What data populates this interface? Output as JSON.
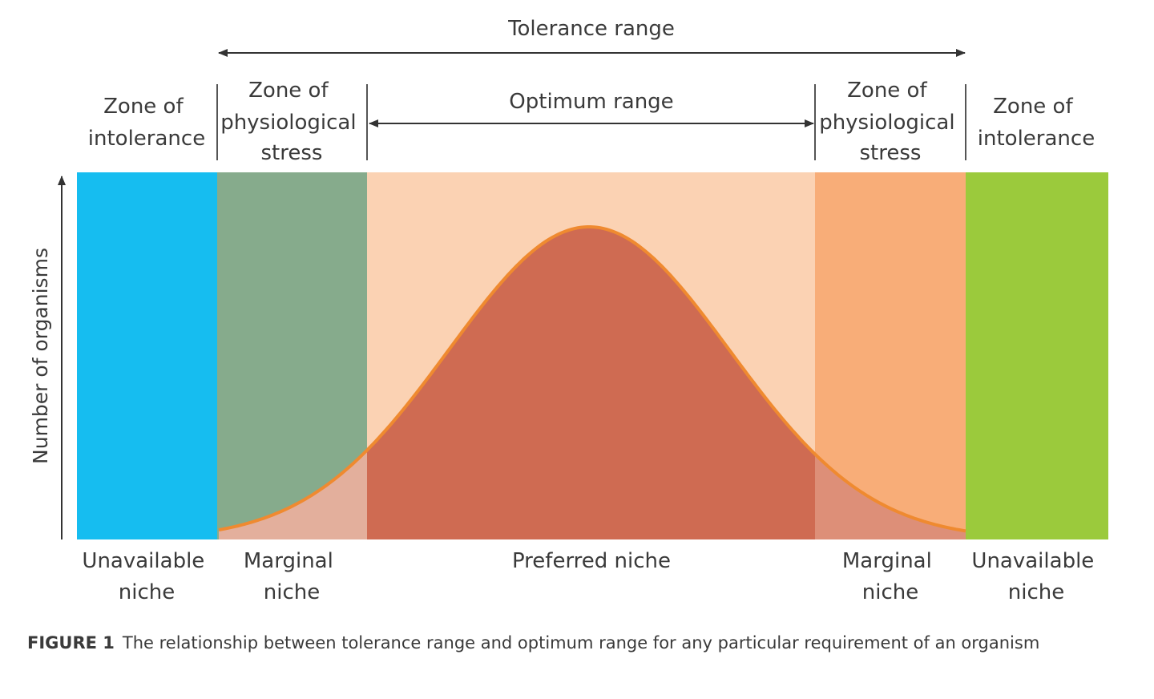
{
  "top": {
    "tolerance_range": "Tolerance range",
    "optimum_range": "Optimum range"
  },
  "zones": [
    {
      "lines": [
        "Zone of",
        "intolerance"
      ]
    },
    {
      "lines": [
        "Zone of",
        "physiological",
        "stress"
      ]
    },
    {
      "lines": [
        "Zone of",
        "physiological",
        "stress"
      ]
    },
    {
      "lines": [
        "Zone of",
        "intolerance"
      ]
    }
  ],
  "bands": [
    {
      "name": "unavailable-left",
      "color": "#16bdf0"
    },
    {
      "name": "marginal-left",
      "color": "#86ab8c"
    },
    {
      "name": "preferred",
      "color": "#fbd2b3"
    },
    {
      "name": "marginal-right",
      "color": "#f8ad78"
    },
    {
      "name": "unavailable-right",
      "color": "#9bca3c"
    }
  ],
  "curve": {
    "fill": "#cf6b52",
    "stroke": "#ef8a30",
    "tail_fill_left": "#e3af9c",
    "tail_fill_right": "#dd8f78"
  },
  "y_axis_label": "Number of organisms",
  "niches": [
    {
      "lines": [
        "Unavailable",
        "niche"
      ]
    },
    {
      "lines": [
        "Marginal",
        "niche"
      ]
    },
    {
      "lines": [
        "Preferred niche"
      ]
    },
    {
      "lines": [
        "Marginal",
        "niche"
      ]
    },
    {
      "lines": [
        "Unavailable",
        "niche"
      ]
    }
  ],
  "caption": {
    "label": "FIGURE 1",
    "text": "The relationship between tolerance range and optimum range for any particular requirement of an organism"
  }
}
